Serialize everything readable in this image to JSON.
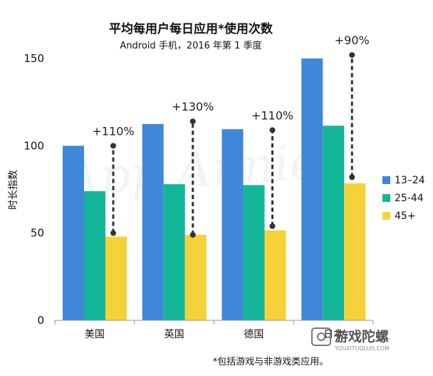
{
  "chart_data": {
    "type": "bar",
    "title": "平均每用户每日应用*使用次数",
    "subtitle": "Android 手机，2016 年第 1 季度",
    "ylabel": "时长指数",
    "xlabel": "",
    "ylim": [
      0,
      150
    ],
    "yticks": [
      0,
      50,
      100,
      150
    ],
    "grid": false,
    "legend_position": "right",
    "categories": [
      "美国",
      "英国",
      "德国",
      "日本"
    ],
    "series": [
      {
        "name": "13–24",
        "color": "#3f87d8",
        "values": [
          100,
          112.5,
          109.5,
          150
        ]
      },
      {
        "name": "25-44",
        "color": "#14b69a",
        "values": [
          74,
          78,
          77.5,
          111.5
        ]
      },
      {
        "name": "45+",
        "color": "#f5d13a",
        "values": [
          48,
          49,
          51.5,
          78.5
        ]
      }
    ],
    "annotations": [
      {
        "category": "美国",
        "text": "+110%",
        "from": 50,
        "to": 100
      },
      {
        "category": "英国",
        "text": "+130%",
        "from": 49,
        "to": 114
      },
      {
        "category": "德国",
        "text": "+110%",
        "from": 54,
        "to": 109
      },
      {
        "category": "日本",
        "text": "+90%",
        "from": 82,
        "to": 152
      }
    ],
    "footnote": "*包括游戏与非游戏类应用。"
  },
  "watermark": "App Annie",
  "brand": {
    "name": "游戏陀螺",
    "url_text": "YOUXITUOLUO.COM"
  }
}
